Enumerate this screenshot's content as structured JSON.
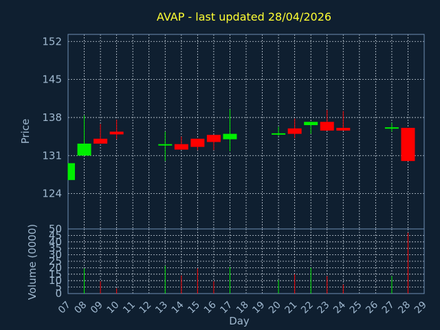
{
  "chart_data": {
    "type": "candlestick",
    "title": "AVAP - last updated 28/04/2026",
    "xlabel": "Day",
    "days": [
      "07",
      "08",
      "09",
      "10",
      "11",
      "12",
      "13",
      "14",
      "15",
      "16",
      "17",
      "18",
      "19",
      "20",
      "21",
      "22",
      "23",
      "24",
      "25",
      "26",
      "27",
      "28",
      "29"
    ],
    "price": {
      "ylabel": "Price",
      "yticks": [
        124,
        131,
        138,
        145,
        152
      ],
      "ylim": [
        117.5,
        153.3
      ],
      "candles": [
        {
          "day": "07",
          "open": 126.5,
          "close": 129.6,
          "high": 129.6,
          "low": 126.5
        },
        {
          "day": "08",
          "open": 131.0,
          "close": 133.2,
          "high": 138.4,
          "low": 131.0
        },
        {
          "day": "09",
          "open": 134.1,
          "close": 133.2,
          "high": 136.8,
          "low": 133.2
        },
        {
          "day": "10",
          "open": 135.4,
          "close": 134.9,
          "high": 137.6,
          "low": 134.0
        },
        {
          "day": "13",
          "open": 132.9,
          "close": 133.1,
          "high": 135.4,
          "low": 130.0
        },
        {
          "day": "14",
          "open": 133.1,
          "close": 132.1,
          "high": 134.5,
          "low": 132.1
        },
        {
          "day": "15",
          "open": 134.1,
          "close": 132.6,
          "high": 134.1,
          "low": 132.0
        },
        {
          "day": "16",
          "open": 134.8,
          "close": 133.5,
          "high": 134.8,
          "low": 132.0
        },
        {
          "day": "17",
          "open": 134.0,
          "close": 135.0,
          "high": 139.5,
          "low": 131.8
        },
        {
          "day": "20",
          "open": 134.9,
          "close": 135.1,
          "high": 136.3,
          "low": 134.6
        },
        {
          "day": "21",
          "open": 136.0,
          "close": 135.0,
          "high": 137.8,
          "low": 134.2
        },
        {
          "day": "22",
          "open": 136.6,
          "close": 137.2,
          "high": 137.2,
          "low": 135.0
        },
        {
          "day": "23",
          "open": 137.2,
          "close": 135.6,
          "high": 139.4,
          "low": 135.6
        },
        {
          "day": "24",
          "open": 136.1,
          "close": 135.6,
          "high": 139.2,
          "low": 135.6
        },
        {
          "day": "27",
          "open": 136.0,
          "close": 136.2,
          "high": 137.0,
          "low": 135.4
        },
        {
          "day": "28",
          "open": 136.1,
          "close": 130.0,
          "high": 136.1,
          "low": 130.0
        }
      ]
    },
    "volume": {
      "ylabel": "Volume (0000)",
      "yticks": [
        0,
        5,
        10,
        15,
        20,
        25,
        30,
        35,
        40,
        45,
        50
      ],
      "ylim": [
        0,
        50
      ],
      "bars": [
        {
          "day": "08",
          "value": 19.5,
          "direction": "up"
        },
        {
          "day": "09",
          "value": 9.5,
          "direction": "down"
        },
        {
          "day": "10",
          "value": 4.0,
          "direction": "down"
        },
        {
          "day": "13",
          "value": 21.5,
          "direction": "up"
        },
        {
          "day": "14",
          "value": 14.0,
          "direction": "down"
        },
        {
          "day": "15",
          "value": 19.5,
          "direction": "down"
        },
        {
          "day": "16",
          "value": 9.5,
          "direction": "down"
        },
        {
          "day": "17",
          "value": 20.5,
          "direction": "up"
        },
        {
          "day": "20",
          "value": 10.5,
          "direction": "up"
        },
        {
          "day": "21",
          "value": 15.0,
          "direction": "down"
        },
        {
          "day": "22",
          "value": 20.0,
          "direction": "up"
        },
        {
          "day": "23",
          "value": 13.5,
          "direction": "down"
        },
        {
          "day": "24",
          "value": 7.0,
          "direction": "down"
        },
        {
          "day": "27",
          "value": 13.5,
          "direction": "up"
        },
        {
          "day": "28",
          "value": 47.0,
          "direction": "down"
        }
      ]
    },
    "colors": {
      "background": "#0f1f30",
      "up": "#00ee00",
      "down": "#ff0000",
      "title": "#ffff33",
      "axis_text": "#9fb8cf",
      "frame": "#6f8fb5",
      "grid": "#c9d3dd"
    },
    "grid": true
  }
}
